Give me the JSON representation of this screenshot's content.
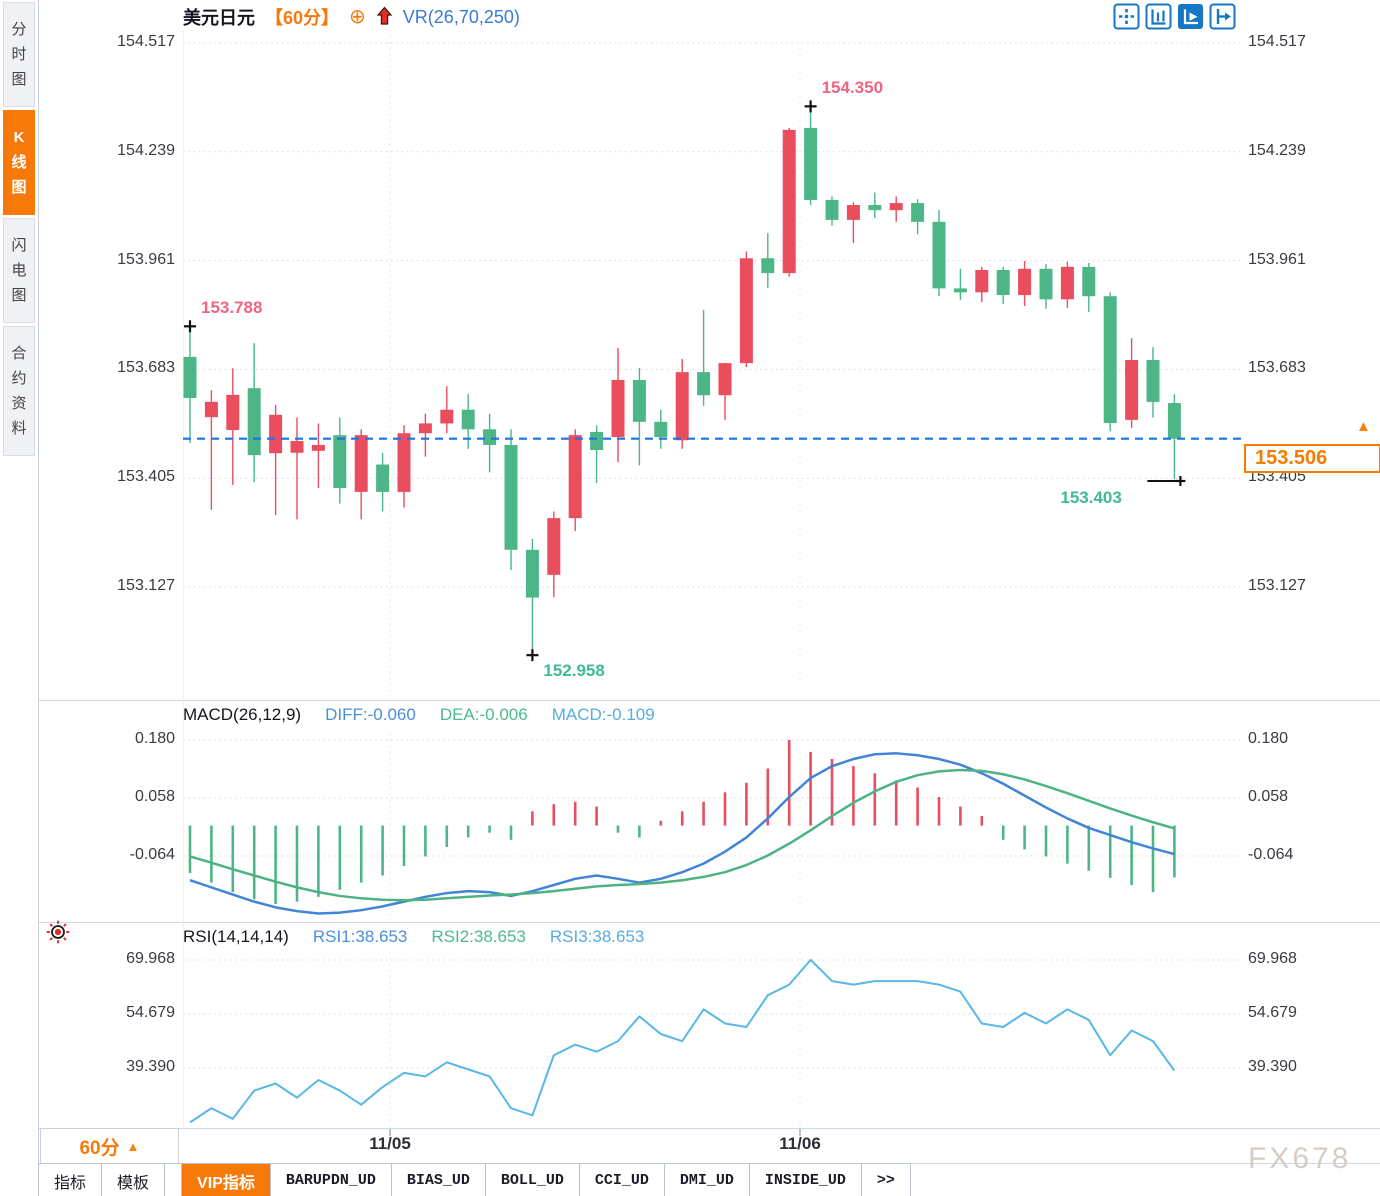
{
  "header": {
    "symbol": "美元日元",
    "interval_label": "【60分】",
    "overlay_indicator": "VR(26,70,250)"
  },
  "sidebar": {
    "items": [
      {
        "label": "分时图",
        "active": false
      },
      {
        "label": "K线图",
        "active": true
      },
      {
        "label": "闪电图",
        "active": false
      },
      {
        "label": "合约资料",
        "active": false
      }
    ]
  },
  "toolbar": {
    "icons": [
      "pan-crosshair-icon",
      "axis-scale-icon",
      "axis-play-icon",
      "exit-chart-icon"
    ]
  },
  "colors": {
    "up": "#ea4d5e",
    "down": "#4cb687",
    "accent_orange": "#f7790a",
    "current_price_line": "#1a73e8",
    "annotation_pink": "#ee6581",
    "annotation_green": "#3fba97",
    "macd_diff_line": "#4285d8",
    "macd_dea_line": "#4db382",
    "rsi_line": "#58b7e8",
    "grid": "#d9d9d9",
    "separator": "#ccd8e3"
  },
  "display": {
    "macd_header": [
      "MACD(26,12,9)",
      "DIFF:-0.060",
      "DEA:-0.006",
      "MACD:-0.109"
    ],
    "rsi_header": [
      "RSI(14,14,14)",
      "RSI1:38.653",
      "RSI2:38.653",
      "RSI3:38.653"
    ]
  },
  "price_panel": {
    "current_price": "153.506"
  },
  "x_axis": {
    "labels": [
      {
        "text": "11/05",
        "x": 390
      },
      {
        "text": "11/06",
        "x": 800
      }
    ]
  },
  "bottom_bar": {
    "interval_label": "60分",
    "interval_arrow": "▲",
    "watermark": "FX678",
    "tabs": [
      {
        "label": "指标",
        "active": false,
        "mono": false
      },
      {
        "label": "模板",
        "active": false,
        "mono": false
      },
      {
        "label": "VIP指标",
        "active": true,
        "mono": false
      },
      {
        "label": "BARUPDN_UD",
        "active": false,
        "mono": true
      },
      {
        "label": "BIAS_UD",
        "active": false,
        "mono": true
      },
      {
        "label": "BOLL_UD",
        "active": false,
        "mono": true
      },
      {
        "label": "CCI_UD",
        "active": false,
        "mono": true
      },
      {
        "label": "DMI_UD",
        "active": false,
        "mono": true
      },
      {
        "label": "INSIDE_UD",
        "active": false,
        "mono": true
      },
      {
        "label": ">>",
        "active": false,
        "mono": true
      }
    ]
  },
  "chart_data": [
    {
      "type": "candlestick",
      "title": "美元日元 60分",
      "up_means": "red (Chinese convention: red = rising, green = falling)",
      "yticks": [
        154.517,
        154.239,
        153.961,
        153.683,
        153.405,
        153.127
      ],
      "ylim": [
        152.88,
        154.56
      ],
      "current_price": 153.506,
      "ohlc": [
        [
          153.715,
          153.788,
          153.495,
          153.61
        ],
        [
          153.561,
          153.63,
          153.324,
          153.6
        ],
        [
          153.528,
          153.686,
          153.388,
          153.618
        ],
        [
          153.635,
          153.75,
          153.395,
          153.464
        ],
        [
          153.469,
          153.592,
          153.311,
          153.567
        ],
        [
          153.47,
          153.56,
          153.3,
          153.5
        ],
        [
          153.475,
          153.545,
          153.38,
          153.49
        ],
        [
          153.515,
          153.56,
          153.34,
          153.38
        ],
        [
          153.37,
          153.53,
          153.3,
          153.515
        ],
        [
          153.44,
          153.47,
          153.32,
          153.37
        ],
        [
          153.37,
          153.54,
          153.33,
          153.52
        ],
        [
          153.52,
          153.57,
          153.46,
          153.545
        ],
        [
          153.545,
          153.64,
          153.52,
          153.58
        ],
        [
          153.58,
          153.62,
          153.48,
          153.53
        ],
        [
          153.53,
          153.57,
          153.42,
          153.49
        ],
        [
          153.49,
          153.53,
          153.17,
          153.222
        ],
        [
          153.222,
          153.25,
          152.958,
          153.1
        ],
        [
          153.158,
          153.32,
          153.101,
          153.303
        ],
        [
          153.303,
          153.53,
          153.27,
          153.515
        ],
        [
          153.523,
          153.54,
          153.393,
          153.477
        ],
        [
          153.51,
          153.738,
          153.446,
          153.656
        ],
        [
          153.656,
          153.687,
          153.438,
          153.549
        ],
        [
          153.549,
          153.58,
          153.48,
          153.51
        ],
        [
          153.502,
          153.71,
          153.48,
          153.676
        ],
        [
          153.676,
          153.835,
          153.59,
          153.617
        ],
        [
          153.617,
          153.7,
          153.554,
          153.699
        ],
        [
          153.699,
          153.984,
          153.689,
          153.967
        ],
        [
          153.967,
          154.031,
          153.891,
          153.929
        ],
        [
          153.929,
          154.3,
          153.92,
          154.295
        ],
        [
          154.3,
          154.35,
          154.103,
          154.116
        ],
        [
          154.116,
          154.125,
          154.05,
          154.065
        ],
        [
          154.065,
          154.11,
          154.006,
          154.103
        ],
        [
          154.103,
          154.135,
          154.07,
          154.09
        ],
        [
          154.09,
          154.125,
          154.06,
          154.108
        ],
        [
          154.108,
          154.118,
          154.028,
          154.06
        ],
        [
          154.06,
          154.09,
          153.87,
          153.89
        ],
        [
          153.89,
          153.94,
          153.86,
          153.88
        ],
        [
          153.88,
          153.945,
          153.855,
          153.937
        ],
        [
          153.937,
          153.945,
          153.85,
          153.873
        ],
        [
          153.873,
          153.96,
          153.845,
          153.94
        ],
        [
          153.94,
          153.952,
          153.838,
          153.862
        ],
        [
          153.862,
          153.958,
          153.84,
          153.945
        ],
        [
          153.945,
          153.955,
          153.83,
          153.87
        ],
        [
          153.87,
          153.88,
          153.525,
          153.546
        ],
        [
          153.554,
          153.763,
          153.533,
          153.707
        ],
        [
          153.707,
          153.74,
          153.56,
          153.6
        ],
        [
          153.597,
          153.62,
          153.403,
          153.506
        ]
      ],
      "annotations": [
        {
          "text": "153.788",
          "candle": 0,
          "price": 153.788,
          "kind": "high"
        },
        {
          "text": "154.350",
          "candle": 29,
          "price": 154.35,
          "kind": "high"
        },
        {
          "text": "152.958",
          "candle": 16,
          "price": 152.958,
          "kind": "low"
        },
        {
          "text": "153.403",
          "candle": 46,
          "price": 153.403,
          "kind": "low-tick"
        }
      ]
    },
    {
      "type": "macd",
      "params": "MACD(26,12,9)",
      "diff_value": -0.06,
      "dea_value": -0.006,
      "macd_value": -0.109,
      "yticks": [
        0.18,
        0.058,
        -0.064
      ],
      "hist": [
        -0.1,
        -0.12,
        -0.14,
        -0.155,
        -0.165,
        -0.16,
        -0.15,
        -0.135,
        -0.12,
        -0.105,
        -0.085,
        -0.065,
        -0.045,
        -0.025,
        -0.015,
        -0.03,
        0.03,
        0.045,
        0.05,
        0.04,
        -0.015,
        -0.025,
        0.01,
        0.03,
        0.05,
        0.07,
        0.09,
        0.12,
        0.18,
        0.155,
        0.14,
        0.125,
        0.11,
        0.095,
        0.08,
        0.06,
        0.04,
        0.02,
        -0.03,
        -0.05,
        -0.065,
        -0.08,
        -0.095,
        -0.11,
        -0.125,
        -0.14,
        -0.109
      ],
      "diff_line": [
        -0.115,
        -0.13,
        -0.145,
        -0.16,
        -0.172,
        -0.18,
        -0.185,
        -0.183,
        -0.178,
        -0.17,
        -0.16,
        -0.15,
        -0.142,
        -0.138,
        -0.14,
        -0.148,
        -0.138,
        -0.125,
        -0.112,
        -0.105,
        -0.112,
        -0.12,
        -0.112,
        -0.098,
        -0.08,
        -0.055,
        -0.025,
        0.015,
        0.06,
        0.1,
        0.125,
        0.14,
        0.15,
        0.152,
        0.148,
        0.14,
        0.128,
        0.11,
        0.088,
        0.063,
        0.038,
        0.015,
        -0.005,
        -0.02,
        -0.035,
        -0.048,
        -0.06
      ],
      "dea_line": [
        -0.065,
        -0.078,
        -0.092,
        -0.105,
        -0.118,
        -0.13,
        -0.14,
        -0.148,
        -0.153,
        -0.156,
        -0.157,
        -0.156,
        -0.153,
        -0.15,
        -0.147,
        -0.145,
        -0.142,
        -0.138,
        -0.133,
        -0.128,
        -0.125,
        -0.123,
        -0.12,
        -0.115,
        -0.108,
        -0.098,
        -0.083,
        -0.063,
        -0.038,
        -0.01,
        0.02,
        0.048,
        0.072,
        0.092,
        0.106,
        0.114,
        0.117,
        0.115,
        0.108,
        0.097,
        0.083,
        0.068,
        0.052,
        0.036,
        0.021,
        0.007,
        -0.006
      ]
    },
    {
      "type": "rsi",
      "params": "RSI(14,14,14)",
      "rsi1": 38.653,
      "rsi2": 38.653,
      "rsi3": 38.653,
      "yticks": [
        69.968,
        54.679,
        39.39
      ],
      "values": [
        24,
        28,
        25,
        33,
        35,
        31,
        36,
        33,
        29,
        34,
        38,
        37,
        41,
        39,
        37,
        28,
        26,
        43,
        46,
        44,
        47,
        54,
        49,
        47,
        56,
        52,
        51,
        60,
        63,
        70,
        64,
        63,
        64,
        64,
        64,
        63,
        61,
        52,
        51,
        55,
        52,
        56,
        53,
        43,
        50,
        47,
        38.653
      ]
    }
  ]
}
